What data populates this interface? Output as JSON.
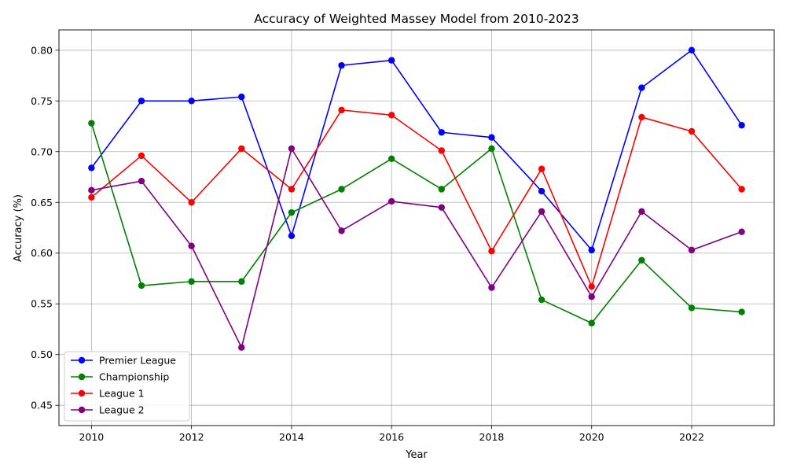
{
  "chart_data": {
    "type": "line",
    "title": "Accuracy of Weighted Massey Model from 2010-2023",
    "xlabel": "Year",
    "ylabel": "Accuracy (%)",
    "x": [
      2010,
      2011,
      2012,
      2013,
      2014,
      2015,
      2016,
      2017,
      2018,
      2019,
      2020,
      2021,
      2022,
      2023
    ],
    "xlim": [
      2009.35,
      2023.65
    ],
    "ylim": [
      0.43,
      0.82
    ],
    "xticks": [
      2010,
      2012,
      2014,
      2016,
      2018,
      2020,
      2022
    ],
    "xtick_labels": [
      "2010",
      "2012",
      "2014",
      "2016",
      "2018",
      "2020",
      "2022"
    ],
    "yticks": [
      0.45,
      0.5,
      0.55,
      0.6,
      0.65,
      0.7,
      0.75,
      0.8
    ],
    "ytick_labels": [
      "0.45",
      "0.50",
      "0.55",
      "0.60",
      "0.65",
      "0.70",
      "0.75",
      "0.80"
    ],
    "grid": true,
    "legend_position": "lower-left",
    "series": [
      {
        "name": "Premier League",
        "color": "#0000ff",
        "values": [
          0.684,
          0.75,
          0.75,
          0.754,
          0.617,
          0.785,
          0.79,
          0.719,
          0.714,
          0.661,
          0.603,
          0.763,
          0.8,
          0.726
        ]
      },
      {
        "name": "Championship",
        "color": "#008000",
        "values": [
          0.728,
          0.568,
          0.572,
          0.572,
          0.64,
          0.663,
          0.693,
          0.663,
          0.703,
          0.554,
          0.531,
          0.593,
          0.546,
          0.542
        ]
      },
      {
        "name": "League 1",
        "color": "#ff0000",
        "values": [
          0.655,
          0.696,
          0.65,
          0.703,
          0.663,
          0.741,
          0.736,
          0.701,
          0.602,
          0.683,
          0.567,
          0.734,
          0.72,
          0.663
        ]
      },
      {
        "name": "League 2",
        "color": "#800080",
        "values": [
          0.662,
          0.671,
          0.607,
          0.507,
          0.703,
          0.622,
          0.651,
          0.645,
          0.566,
          0.641,
          0.557,
          0.641,
          0.603,
          0.621
        ]
      }
    ]
  }
}
